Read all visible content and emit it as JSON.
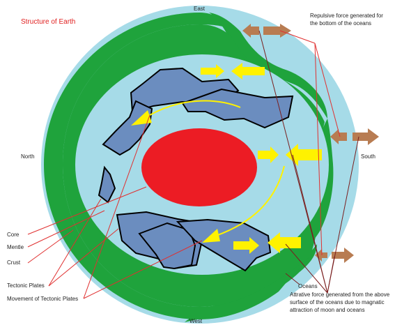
{
  "title": "Structure of Earth",
  "directions": {
    "east": "East",
    "west": "West",
    "north": "North",
    "south": "South"
  },
  "labels": {
    "core": "Core",
    "mentle": "Mentle",
    "crust": "Crust",
    "tectonic_plates": "Tectonic Plates",
    "movement": "Movement of Tectonic Plates",
    "oceans": "Oceans",
    "repulsive": [
      "Repulsive force generated for",
      "the bottom of the oceans"
    ],
    "attractive": [
      "Attrative force generated from the above",
      "surface of the oceans due to magnatic",
      "attraction of moon and oceans"
    ]
  },
  "colors": {
    "ocean": "#a6dbe8",
    "crust": "#1fa33c",
    "mantle": "#a6dbe8",
    "core": "#ec1c24",
    "plate": "#6b8dbf",
    "force_arrow": "#fff200",
    "repulsive_arrow": "#b87c52",
    "leader_line": "#e03030",
    "title": "#e02020"
  }
}
